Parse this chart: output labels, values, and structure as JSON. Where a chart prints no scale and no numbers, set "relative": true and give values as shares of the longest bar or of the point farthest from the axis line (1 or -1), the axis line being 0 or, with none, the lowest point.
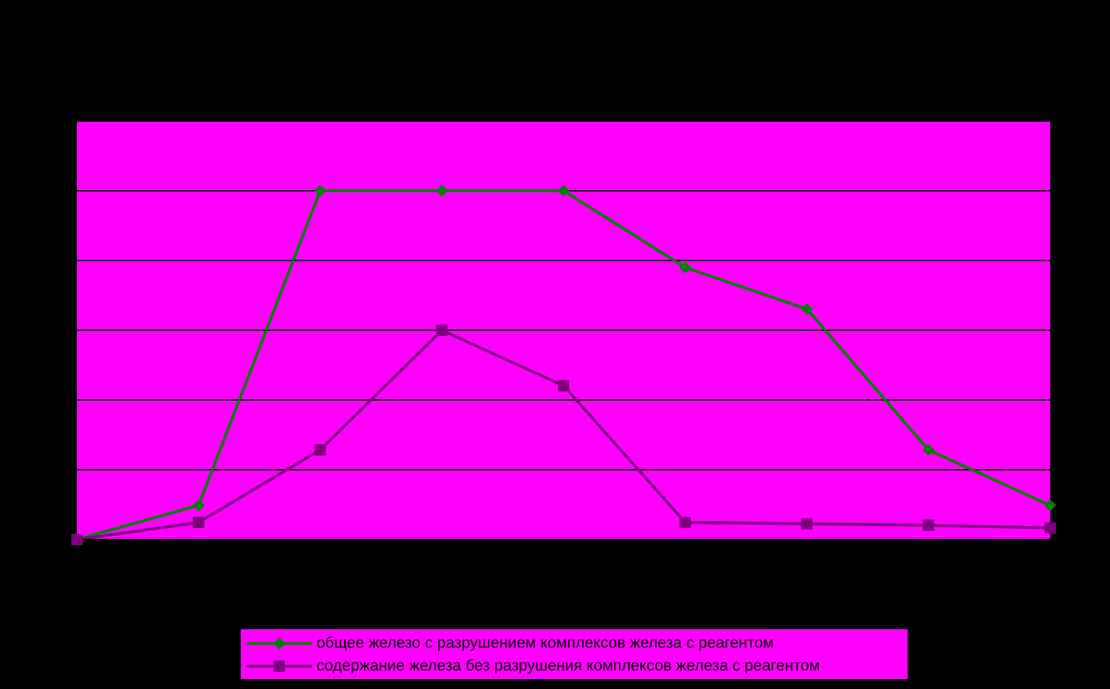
{
  "chart_data": {
    "type": "line",
    "relative": true,
    "categories": [
      null,
      null,
      null,
      null,
      null,
      null,
      null,
      null,
      null
    ],
    "grid": "y",
    "legend": "bottom",
    "series": [
      {
        "name": "общее железо с разрушением комплексов железа с реагентом",
        "color": "#008000",
        "marker": "diamond",
        "values": [
          0,
          0.098,
          1,
          1,
          1,
          0.78,
          0.661,
          0.257,
          0.098
        ]
      },
      {
        "name": "содержание железа без разрушения комплексов железа с реагентом",
        "color": "#800080",
        "marker": "square",
        "values": [
          0,
          0.049,
          0.257,
          0.6,
          0.441,
          0.049,
          0.045,
          0.041,
          0.033
        ]
      }
    ]
  }
}
